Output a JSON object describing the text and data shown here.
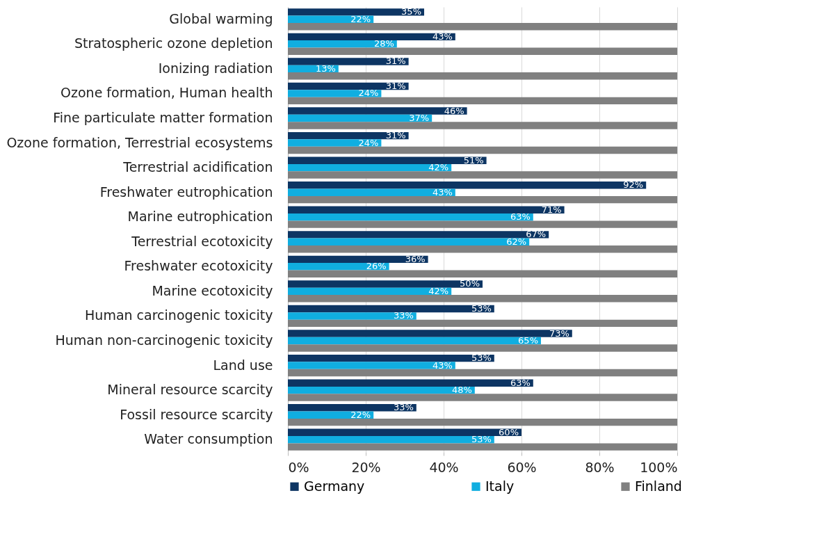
{
  "chart_data": {
    "type": "bar",
    "orientation": "horizontal",
    "categories": [
      "Global warming",
      "Stratospheric ozone depletion",
      "Ionizing radiation",
      "Ozone formation, Human health",
      "Fine particulate matter formation",
      "Ozone formation, Terrestrial ecosystems",
      "Terrestrial acidification",
      "Freshwater eutrophication",
      "Marine eutrophication",
      "Terrestrial ecotoxicity",
      "Freshwater ecotoxicity",
      "Marine ecotoxicity",
      "Human carcinogenic toxicity",
      "Human non-carcinogenic toxicity",
      "Land use",
      "Mineral resource scarcity",
      "Fossil resource scarcity",
      "Water consumption"
    ],
    "series": [
      {
        "name": "Germany",
        "color": "#0d3563",
        "values": [
          35,
          43,
          31,
          31,
          46,
          31,
          51,
          92,
          71,
          67,
          36,
          50,
          53,
          73,
          53,
          63,
          33,
          60
        ],
        "value_labels": [
          "35%",
          "43%",
          "31%",
          "31%",
          "46%",
          "31%",
          "51%",
          "92%",
          "71%",
          "67%",
          "36%",
          "50%",
          "53%",
          "73%",
          "53%",
          "63%",
          "33%",
          "60%"
        ]
      },
      {
        "name": "Italy",
        "color": "#10aee0",
        "values": [
          22,
          28,
          13,
          24,
          37,
          24,
          42,
          43,
          63,
          62,
          26,
          42,
          33,
          65,
          43,
          48,
          22,
          53
        ],
        "value_labels": [
          "22%",
          "28%",
          "13%",
          "24%",
          "37%",
          "24%",
          "42%",
          "43%",
          "63%",
          "62%",
          "26%",
          "42%",
          "33%",
          "65%",
          "43%",
          "48%",
          "22%",
          "53%"
        ]
      },
      {
        "name": "Finland",
        "color": "#808080",
        "values": [
          100,
          100,
          100,
          100,
          100,
          100,
          100,
          100,
          100,
          100,
          100,
          100,
          100,
          100,
          100,
          100,
          100,
          100
        ]
      }
    ],
    "xlim": [
      0,
      100
    ],
    "xticks": [
      {
        "value": 0,
        "label": "0%"
      },
      {
        "value": 20,
        "label": "20%"
      },
      {
        "value": 40,
        "label": "40%"
      },
      {
        "value": 60,
        "label": "60%"
      },
      {
        "value": 80,
        "label": "80%"
      },
      {
        "value": 100,
        "label": "100%"
      }
    ],
    "grid": "x",
    "legend": "bottom"
  }
}
